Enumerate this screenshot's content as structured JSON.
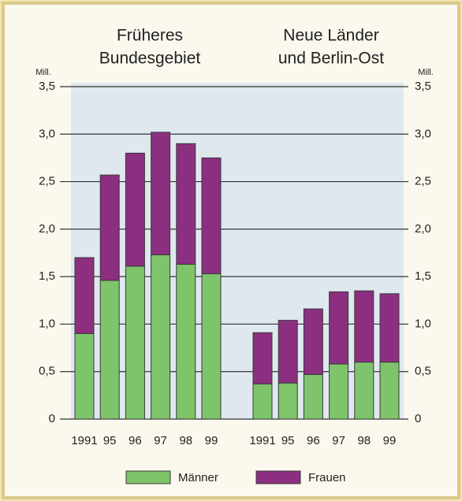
{
  "chart_data": {
    "type": "bar",
    "stacked": true,
    "ylabel": "Mill.",
    "y2label": "Mill.",
    "ylim": [
      0,
      3.5
    ],
    "yticks": [
      0,
      {
        "value": 0.5,
        "label": "0,5"
      },
      {
        "value": 1,
        "label": "1,0"
      },
      {
        "value": 1.5,
        "label": "1,5"
      },
      {
        "value": 2,
        "label": "2,0"
      },
      {
        "value": 2.5,
        "label": "2,5"
      },
      {
        "value": 3,
        "label": "3,0"
      },
      {
        "value": 3.5,
        "label": "3,5"
      }
    ],
    "y2lim": [
      0,
      3.5
    ],
    "y2ticks": [
      0,
      {
        "value": 0.5,
        "label": "0,5"
      },
      {
        "value": 1,
        "label": "1,0"
      },
      {
        "value": 1.5,
        "label": "1,5"
      },
      {
        "value": 2,
        "label": "2,0"
      },
      {
        "value": 2.5,
        "label": "2,5"
      },
      {
        "value": 3,
        "label": "3,0"
      },
      {
        "value": 3.5,
        "label": "3,5"
      }
    ],
    "grid": true,
    "legend": "bottom",
    "series": [
      {
        "name": "Männer",
        "color": "#7dc46b"
      },
      {
        "name": "Frauen",
        "color": "#8c2f80"
      }
    ],
    "panels": [
      {
        "title": [
          "Früheres",
          "Bundesgebiet"
        ],
        "categories": [
          "1991",
          "95",
          "96",
          "97",
          "98",
          "99"
        ],
        "series": [
          {
            "values": [
              0.9,
              1.46,
              1.61,
              1.73,
              1.63,
              1.53
            ]
          },
          {
            "values": [
              0.8,
              1.11,
              1.19,
              1.29,
              1.27,
              1.22
            ]
          }
        ]
      },
      {
        "title": [
          "Neue Länder",
          "und Berlin-Ost"
        ],
        "categories": [
          "1991",
          "95",
          "96",
          "97",
          "98",
          "99"
        ],
        "axis": "y2",
        "series": [
          {
            "values": [
              0.37,
              0.38,
              0.47,
              0.58,
              0.6,
              0.6
            ]
          },
          {
            "values": [
              0.54,
              0.66,
              0.69,
              0.76,
              0.75,
              0.72
            ]
          }
        ]
      }
    ]
  }
}
